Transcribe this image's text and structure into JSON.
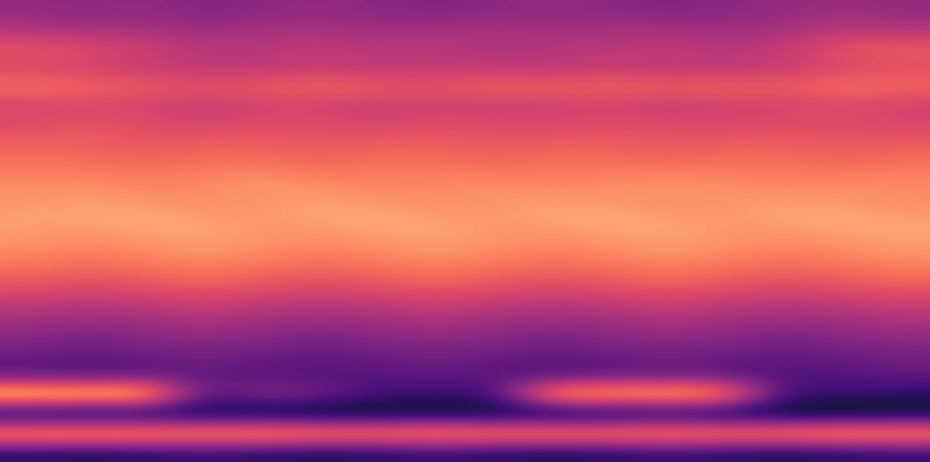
{
  "chart_data": {
    "type": "heatmap",
    "color": "magma",
    "tick_labels": false,
    "cells": [
      [
        0.56,
        0.55,
        0.56,
        0.54,
        0.55,
        0.56,
        0.55,
        0.54,
        0.55,
        0.56,
        0.55,
        0.54,
        0.55,
        0.56,
        0.57,
        0.56
      ],
      [
        0.59,
        0.58,
        0.58,
        0.57,
        0.58,
        0.58,
        0.57,
        0.58,
        0.58,
        0.57,
        0.58,
        0.58,
        0.57,
        0.58,
        0.6,
        0.59
      ],
      [
        0.65,
        0.64,
        0.62,
        0.6,
        0.6,
        0.61,
        0.6,
        0.6,
        0.59,
        0.6,
        0.6,
        0.61,
        0.6,
        0.61,
        0.65,
        0.66
      ],
      [
        0.63,
        0.62,
        0.61,
        0.6,
        0.6,
        0.61,
        0.6,
        0.61,
        0.6,
        0.6,
        0.61,
        0.6,
        0.6,
        0.61,
        0.63,
        0.64
      ],
      [
        0.68,
        0.67,
        0.66,
        0.65,
        0.66,
        0.67,
        0.66,
        0.65,
        0.67,
        0.66,
        0.67,
        0.66,
        0.67,
        0.66,
        0.68,
        0.67
      ],
      [
        0.62,
        0.63,
        0.62,
        0.61,
        0.62,
        0.62,
        0.61,
        0.62,
        0.61,
        0.62,
        0.62,
        0.61,
        0.62,
        0.62,
        0.63,
        0.62
      ],
      [
        0.64,
        0.65,
        0.64,
        0.63,
        0.64,
        0.64,
        0.63,
        0.64,
        0.64,
        0.63,
        0.64,
        0.64,
        0.63,
        0.64,
        0.64,
        0.63
      ],
      [
        0.66,
        0.66,
        0.65,
        0.66,
        0.66,
        0.65,
        0.66,
        0.66,
        0.65,
        0.66,
        0.66,
        0.65,
        0.66,
        0.66,
        0.65,
        0.66
      ],
      [
        0.68,
        0.68,
        0.67,
        0.68,
        0.68,
        0.67,
        0.68,
        0.68,
        0.67,
        0.68,
        0.68,
        0.67,
        0.68,
        0.68,
        0.67,
        0.68
      ],
      [
        0.7,
        0.7,
        0.69,
        0.7,
        0.71,
        0.7,
        0.69,
        0.7,
        0.7,
        0.69,
        0.7,
        0.71,
        0.7,
        0.69,
        0.7,
        0.7
      ],
      [
        0.71,
        0.72,
        0.71,
        0.7,
        0.71,
        0.72,
        0.71,
        0.7,
        0.71,
        0.72,
        0.71,
        0.7,
        0.71,
        0.72,
        0.71,
        0.7
      ],
      [
        0.72,
        0.72,
        0.73,
        0.72,
        0.71,
        0.72,
        0.73,
        0.72,
        0.71,
        0.72,
        0.73,
        0.72,
        0.71,
        0.72,
        0.73,
        0.72
      ],
      [
        0.71,
        0.7,
        0.71,
        0.72,
        0.71,
        0.7,
        0.71,
        0.72,
        0.71,
        0.7,
        0.71,
        0.72,
        0.71,
        0.7,
        0.71,
        0.72
      ],
      [
        0.69,
        0.68,
        0.69,
        0.7,
        0.69,
        0.68,
        0.69,
        0.7,
        0.69,
        0.68,
        0.69,
        0.7,
        0.69,
        0.68,
        0.69,
        0.7
      ],
      [
        0.66,
        0.65,
        0.66,
        0.67,
        0.66,
        0.65,
        0.66,
        0.67,
        0.66,
        0.65,
        0.66,
        0.67,
        0.66,
        0.65,
        0.66,
        0.67
      ],
      [
        0.62,
        0.61,
        0.62,
        0.63,
        0.62,
        0.61,
        0.62,
        0.63,
        0.62,
        0.61,
        0.62,
        0.63,
        0.62,
        0.61,
        0.62,
        0.63
      ],
      [
        0.58,
        0.57,
        0.58,
        0.59,
        0.58,
        0.57,
        0.58,
        0.59,
        0.58,
        0.57,
        0.58,
        0.59,
        0.58,
        0.57,
        0.58,
        0.59
      ],
      [
        0.55,
        0.54,
        0.55,
        0.56,
        0.55,
        0.54,
        0.55,
        0.56,
        0.55,
        0.54,
        0.55,
        0.56,
        0.55,
        0.54,
        0.55,
        0.56
      ],
      [
        0.52,
        0.51,
        0.52,
        0.53,
        0.52,
        0.51,
        0.52,
        0.53,
        0.52,
        0.51,
        0.52,
        0.53,
        0.52,
        0.51,
        0.52,
        0.53
      ],
      [
        0.5,
        0.49,
        0.5,
        0.51,
        0.5,
        0.49,
        0.5,
        0.51,
        0.5,
        0.49,
        0.5,
        0.51,
        0.5,
        0.49,
        0.5,
        0.51
      ],
      [
        0.8,
        0.79,
        0.8,
        0.5,
        0.56,
        0.54,
        0.48,
        0.47,
        0.48,
        0.77,
        0.76,
        0.77,
        0.75,
        0.48,
        0.47,
        0.46
      ],
      [
        0.4,
        0.39,
        0.4,
        0.41,
        0.4,
        0.39,
        0.4,
        0.41,
        0.4,
        0.39,
        0.4,
        0.41,
        0.4,
        0.39,
        0.4,
        0.41
      ],
      [
        0.75,
        0.76,
        0.75,
        0.74,
        0.75,
        0.74,
        0.73,
        0.74,
        0.73,
        0.74,
        0.73,
        0.74,
        0.73,
        0.74,
        0.75,
        0.74
      ],
      [
        0.45,
        0.44,
        0.45,
        0.46,
        0.45,
        0.44,
        0.45,
        0.46,
        0.45,
        0.44,
        0.45,
        0.46,
        0.45,
        0.44,
        0.45,
        0.46
      ]
    ]
  }
}
